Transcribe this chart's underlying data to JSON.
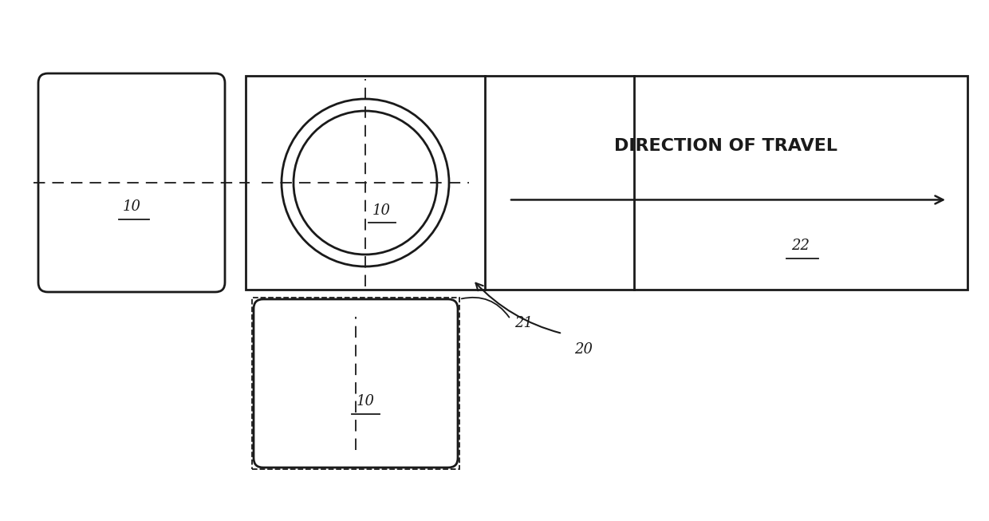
{
  "bg_color": "#ffffff",
  "line_color": "#1a1a1a",
  "fig_width": 12.4,
  "fig_height": 6.53,
  "direction_text": "DIRECTION OF TRAVEL",
  "label_10_side": "10",
  "label_10_front": "10",
  "label_10_bottom": "10",
  "label_21": "21",
  "label_20": "20",
  "label_22": "22",
  "lw_thick": 2.0,
  "lw_thin": 1.3
}
